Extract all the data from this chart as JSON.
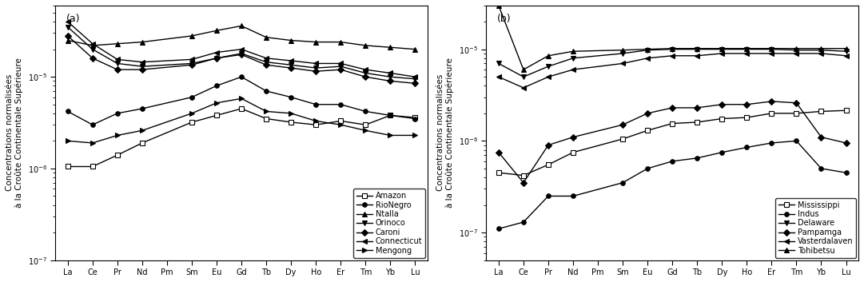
{
  "elements": [
    "La",
    "Ce",
    "Pr",
    "Nd",
    "Pm",
    "Sm",
    "Eu",
    "Gd",
    "Tb",
    "Dy",
    "Ho",
    "Er",
    "Tm",
    "Yb",
    "Lu"
  ],
  "panel_a": {
    "label": "(a)",
    "ylabel": "Concentrations normalisées\nà la Croûte Continentale Supérieure",
    "ylim": [
      1e-07,
      6e-05
    ],
    "yticks": [
      1e-07,
      1e-06,
      1e-05
    ],
    "series": {
      "Amazon": [
        1.05e-06,
        1.05e-06,
        1.4e-06,
        1.9e-06,
        null,
        3.2e-06,
        3.8e-06,
        4.5e-06,
        3.5e-06,
        3.2e-06,
        3e-06,
        3.3e-06,
        3e-06,
        3.8e-06,
        3.6e-06
      ],
      "RioNegro": [
        4.2e-06,
        3e-06,
        4e-06,
        4.5e-06,
        null,
        6e-06,
        8e-06,
        1e-05,
        7e-06,
        6e-06,
        5e-06,
        5e-06,
        4.2e-06,
        3.8e-06,
        3.5e-06
      ],
      "Ntalla": [
        2.5e-05,
        2.2e-05,
        2.3e-05,
        2.4e-05,
        null,
        2.8e-05,
        3.2e-05,
        3.6e-05,
        2.7e-05,
        2.5e-05,
        2.4e-05,
        2.4e-05,
        2.2e-05,
        2.1e-05,
        2e-05
      ],
      "Orinoco": [
        3.5e-05,
        2e-05,
        1.4e-05,
        1.3e-05,
        null,
        1.4e-05,
        1.6e-05,
        1.8e-05,
        1.45e-05,
        1.35e-05,
        1.25e-05,
        1.3e-05,
        1.1e-05,
        1e-05,
        9.5e-06
      ],
      "Caroni": [
        2.8e-05,
        1.6e-05,
        1.2e-05,
        1.2e-05,
        null,
        1.35e-05,
        1.6e-05,
        1.75e-05,
        1.35e-05,
        1.25e-05,
        1.15e-05,
        1.2e-05,
        1e-05,
        9e-06,
        8.5e-06
      ],
      "Connecticut": [
        4e-05,
        2.3e-05,
        1.55e-05,
        1.45e-05,
        null,
        1.55e-05,
        1.85e-05,
        2e-05,
        1.6e-05,
        1.5e-05,
        1.4e-05,
        1.4e-05,
        1.2e-05,
        1.1e-05,
        1e-05
      ],
      "Mengong": [
        2e-06,
        1.9e-06,
        2.3e-06,
        2.6e-06,
        null,
        4e-06,
        5.2e-06,
        5.8e-06,
        4.2e-06,
        4e-06,
        3.3e-06,
        3e-06,
        2.6e-06,
        2.3e-06,
        2.3e-06
      ]
    },
    "markers": {
      "Amazon": "s",
      "RioNegro": "o",
      "Ntalla": "^",
      "Orinoco": "v",
      "Caroni": "D",
      "Connecticut": "<",
      "Mengong": ">"
    },
    "open_markers": [
      "Amazon"
    ]
  },
  "panel_b": {
    "label": "(b)",
    "ylabel": "Concentrations normalisées\nà la Croûte Continentale Supérieure",
    "ylim": [
      5e-08,
      3e-05
    ],
    "yticks": [
      1e-07,
      1e-06,
      1e-05
    ],
    "series": {
      "Mississippi": [
        4.5e-07,
        4.2e-07,
        5.5e-07,
        7.5e-07,
        null,
        1.05e-06,
        1.3e-06,
        1.55e-06,
        1.6e-06,
        1.75e-06,
        1.8e-06,
        2e-06,
        2e-06,
        2.1e-06,
        2.15e-06
      ],
      "Indus": [
        1.1e-07,
        1.3e-07,
        2.5e-07,
        2.5e-07,
        null,
        3.5e-07,
        5e-07,
        6e-07,
        6.5e-07,
        7.5e-07,
        8.5e-07,
        9.5e-07,
        1e-06,
        5e-07,
        4.5e-07
      ],
      "Delaware": [
        7e-06,
        5e-06,
        6.5e-06,
        8e-06,
        null,
        9e-06,
        9.8e-06,
        1e-05,
        1e-05,
        1e-05,
        1e-05,
        1e-05,
        9.8e-06,
        9.8e-06,
        9.5e-06
      ],
      "Pampamga": [
        7.5e-07,
        3.5e-07,
        9e-07,
        1.1e-06,
        null,
        1.5e-06,
        2e-06,
        2.3e-06,
        2.3e-06,
        2.5e-06,
        2.5e-06,
        2.7e-06,
        2.6e-06,
        1.1e-06,
        9.5e-07
      ],
      "Vasterdalaven": [
        5e-06,
        3.8e-06,
        5e-06,
        6e-06,
        null,
        7e-06,
        8e-06,
        8.5e-06,
        8.5e-06,
        9e-06,
        9e-06,
        9e-06,
        9e-06,
        9e-06,
        8.5e-06
      ],
      "Tohibetsu": [
        3e-05,
        6e-06,
        8.5e-06,
        9.5e-06,
        null,
        9.8e-06,
        1e-05,
        1.02e-05,
        1.02e-05,
        1.02e-05,
        1.02e-05,
        1.02e-05,
        1.02e-05,
        1.02e-05,
        1.02e-05
      ]
    },
    "markers": {
      "Mississippi": "s",
      "Indus": "o",
      "Delaware": "v",
      "Pampamga": "D",
      "Vasterdalaven": "<",
      "Tohibetsu": "^"
    },
    "open_markers": [
      "Mississippi"
    ]
  },
  "line_color": "black",
  "marker_size": 4,
  "linewidth": 1.0,
  "legend_fontsize": 7,
  "tick_fontsize": 7,
  "ylabel_fontsize": 7.5
}
